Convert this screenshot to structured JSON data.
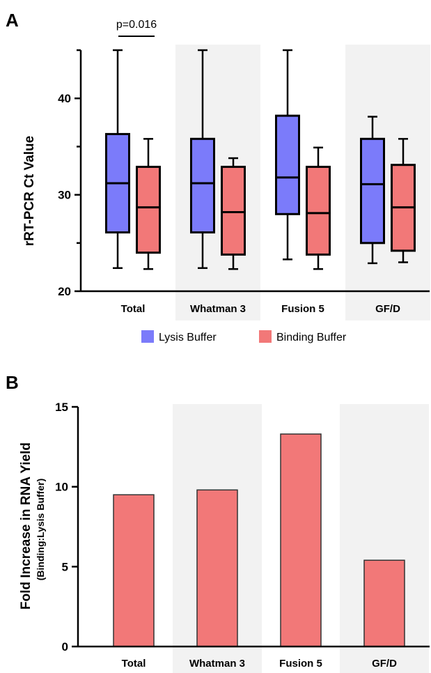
{
  "colors": {
    "lysis": "#7b7bfa",
    "binding": "#f27878",
    "shade": "#f2f2f2",
    "stroke": "#000000"
  },
  "chart_data": [
    {
      "panel": "A",
      "type": "box",
      "ylabel": "rRT-PCR Ct Value",
      "ylim": [
        20,
        45
      ],
      "yticks": [
        20,
        30,
        40
      ],
      "categories": [
        "Total",
        "Whatman 3",
        "Fusion 5",
        "GF/D"
      ],
      "shaded_categories": [
        "Whatman 3",
        "GF/D"
      ],
      "series": [
        {
          "name": "Lysis Buffer",
          "boxes": [
            {
              "min": 22.4,
              "q1": 26.1,
              "median": 31.2,
              "q3": 36.3,
              "max": 45.0
            },
            {
              "min": 22.4,
              "q1": 26.1,
              "median": 31.2,
              "q3": 35.8,
              "max": 45.0
            },
            {
              "min": 23.3,
              "q1": 28.0,
              "median": 31.8,
              "q3": 38.2,
              "max": 45.0
            },
            {
              "min": 22.9,
              "q1": 25.0,
              "median": 31.1,
              "q3": 35.8,
              "max": 38.1
            }
          ]
        },
        {
          "name": "Binding Buffer",
          "boxes": [
            {
              "min": 22.3,
              "q1": 24.0,
              "median": 28.7,
              "q3": 32.9,
              "max": 35.8
            },
            {
              "min": 22.3,
              "q1": 23.8,
              "median": 28.2,
              "q3": 32.9,
              "max": 33.8
            },
            {
              "min": 22.3,
              "q1": 23.8,
              "median": 28.1,
              "q3": 32.9,
              "max": 34.9
            },
            {
              "min": 23.0,
              "q1": 24.2,
              "median": 28.7,
              "q3": 33.1,
              "max": 35.8
            }
          ]
        }
      ],
      "annotation": {
        "text": "p=0.016",
        "category": "Total"
      },
      "legend": [
        "Lysis Buffer",
        "Binding Buffer"
      ],
      "legend_placement": "bottom"
    },
    {
      "panel": "B",
      "type": "bar",
      "ylabel": "Fold Increase in RNA Yield",
      "ylabel_sub": "(Binding:Lysis Buffer)",
      "ylim": [
        0,
        15
      ],
      "yticks": [
        0,
        5,
        10,
        15
      ],
      "categories": [
        "Total",
        "Whatman 3",
        "Fusion 5",
        "GF/D"
      ],
      "shaded_categories": [
        "Whatman 3",
        "GF/D"
      ],
      "values": [
        9.5,
        9.8,
        13.3,
        5.4
      ]
    }
  ]
}
